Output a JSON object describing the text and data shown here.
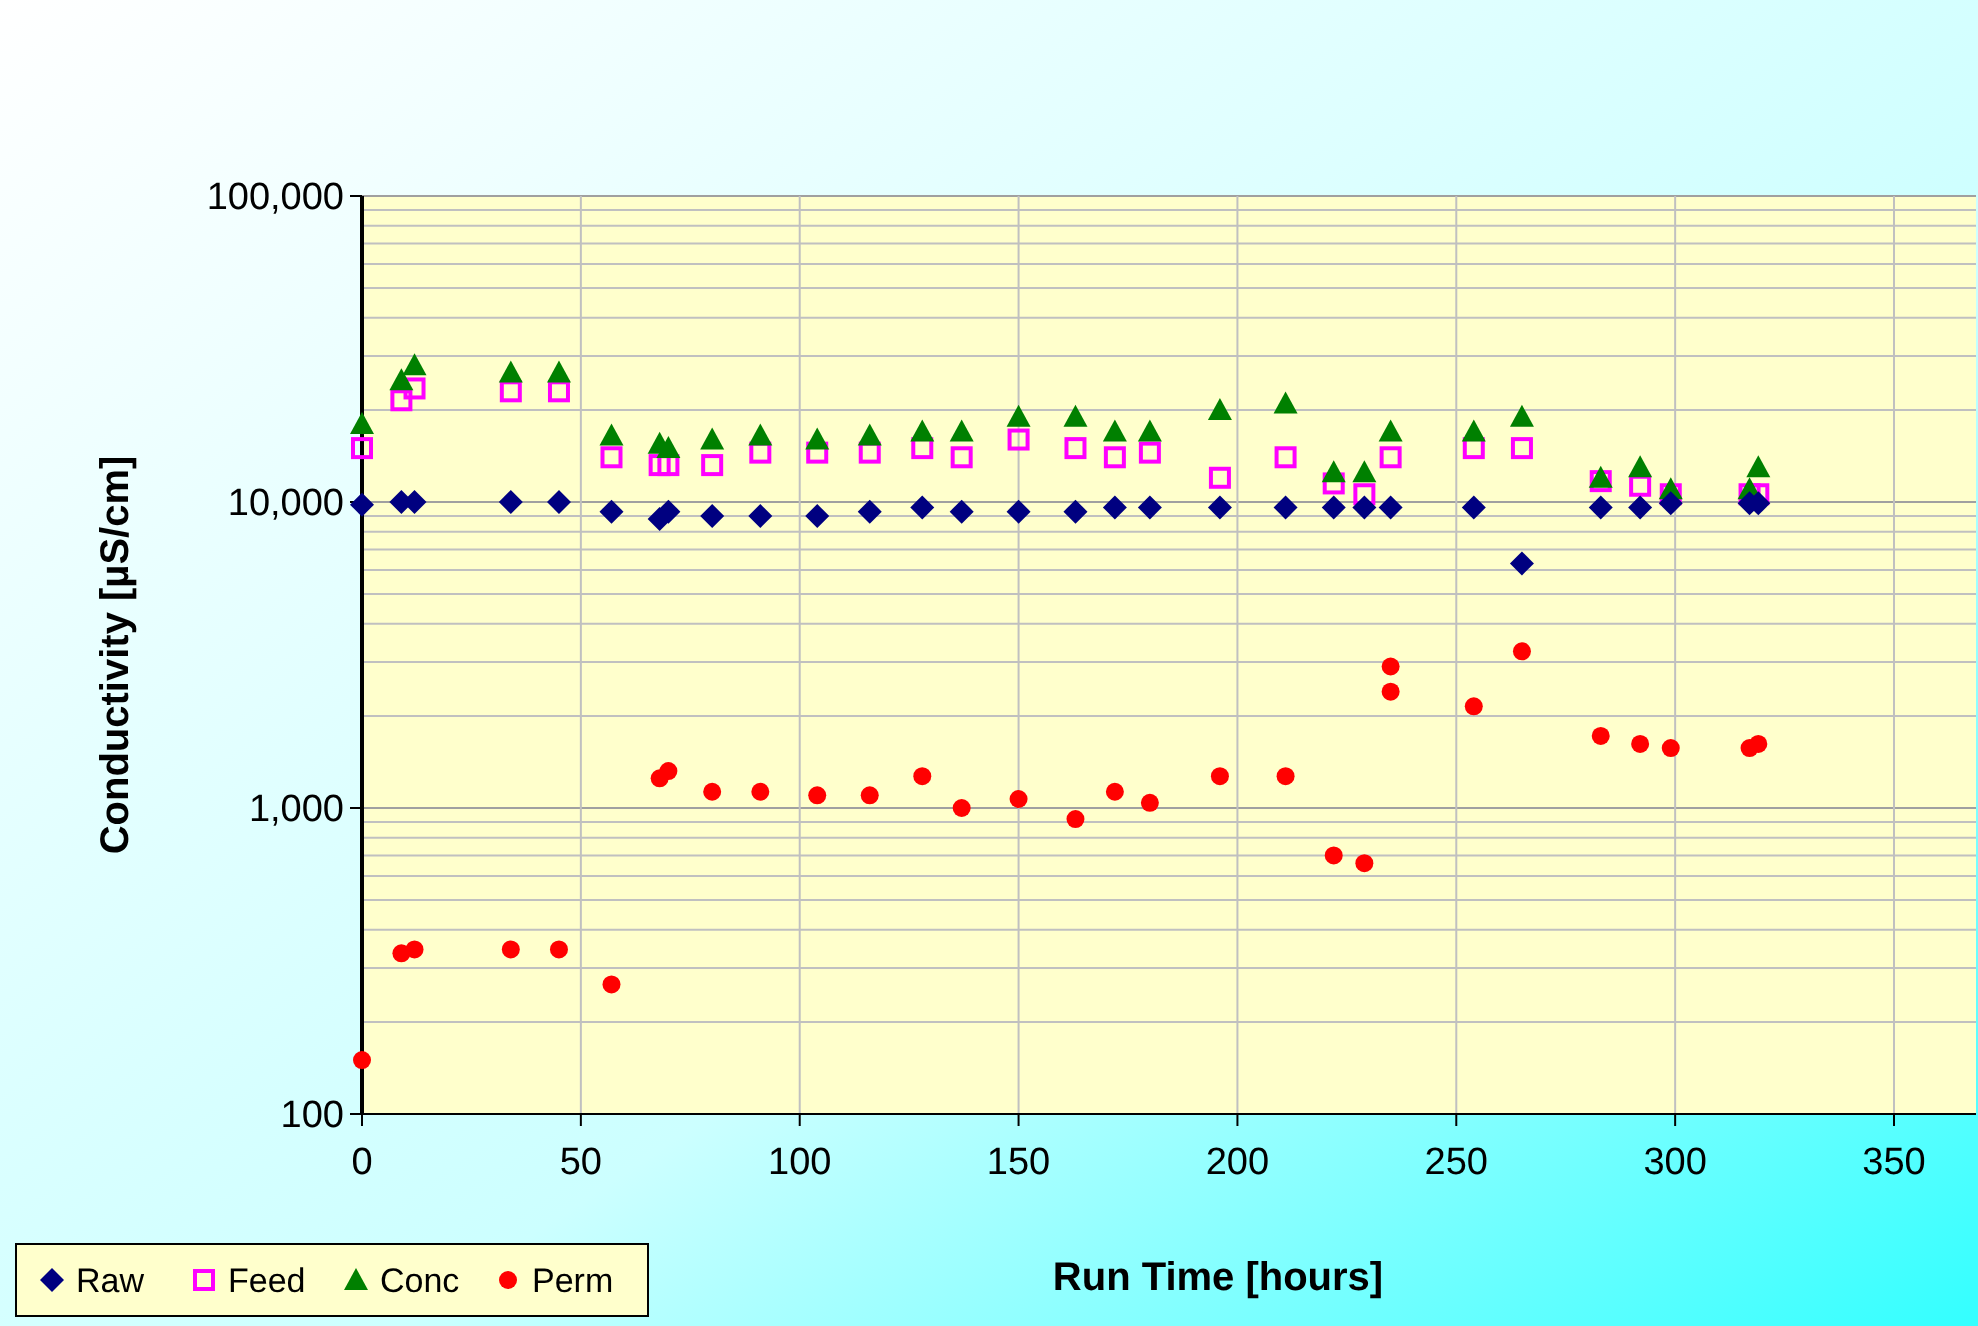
{
  "chart_data": {
    "type": "scatter",
    "xlabel": "Run Time [hours]",
    "ylabel": "Conductivity [µS/cm]",
    "log": "y",
    "grid": true,
    "legend": "bottom left",
    "x": [
      0,
      9,
      12,
      34,
      45,
      57,
      68,
      70,
      80,
      91,
      104,
      116,
      128,
      137,
      150,
      163,
      172,
      180,
      196,
      211,
      222,
      229,
      235,
      254,
      265,
      283,
      292,
      299,
      317,
      319
    ],
    "xlim": [
      0,
      350
    ],
    "xticks": [
      0,
      50,
      100,
      150,
      200,
      250,
      300,
      350
    ],
    "ylim": [
      100,
      100000
    ],
    "yticks": [
      {
        "value": 100,
        "label": "100"
      },
      {
        "value": 1000,
        "label": "1,000"
      },
      {
        "value": 10000,
        "label": "10,000"
      },
      {
        "value": 100000,
        "label": "100,000"
      }
    ],
    "series": [
      {
        "name": "Raw",
        "color": "#000080",
        "marker": "diamond",
        "values": [
          9800,
          10000,
          10000,
          10000,
          10000,
          9300,
          8800,
          9300,
          9000,
          9000,
          9000,
          9300,
          9600,
          9300,
          9300,
          9300,
          9600,
          9600,
          9600,
          9600,
          9600,
          9600,
          9600,
          9600,
          6300,
          9600,
          9600,
          9900,
          9900,
          9900
        ]
      },
      {
        "name": "Feed",
        "color": "#ff00ff",
        "marker": "square",
        "values": [
          15000,
          21500,
          23500,
          23000,
          23000,
          14000,
          13200,
          13200,
          13200,
          14500,
          14500,
          14500,
          15000,
          14000,
          16000,
          15000,
          14000,
          14500,
          12000,
          14000,
          11500,
          10600,
          14000,
          15000,
          15000,
          11700,
          11300,
          10600,
          10600,
          10600
        ]
      },
      {
        "name": "Conc",
        "color": "#008000",
        "marker": "triangle",
        "values": [
          18000,
          25000,
          28000,
          26500,
          26500,
          16500,
          15500,
          15000,
          16000,
          16500,
          16000,
          16500,
          17000,
          17000,
          19000,
          19000,
          17000,
          17000,
          20000,
          21000,
          12500,
          12500,
          17000,
          17000,
          19000,
          12000,
          13000,
          11000,
          11000,
          13000
        ]
      },
      {
        "name": "Perm",
        "color": "#ff0000",
        "marker": "circle",
        "x": [
          0,
          9,
          12,
          34,
          45,
          57,
          68,
          70,
          80,
          91,
          104,
          116,
          128,
          137,
          150,
          163,
          172,
          180,
          196,
          211,
          222,
          229,
          235,
          235,
          254,
          265,
          283,
          292,
          299,
          317,
          319
        ],
        "values": [
          150,
          335,
          345,
          345,
          345,
          265,
          1250,
          1320,
          1130,
          1130,
          1100,
          1100,
          1270,
          1000,
          1070,
          920,
          1130,
          1040,
          1270,
          1270,
          700,
          660,
          2900,
          2400,
          2150,
          3250,
          1720,
          1620,
          1570,
          1570,
          1620
        ]
      }
    ]
  }
}
